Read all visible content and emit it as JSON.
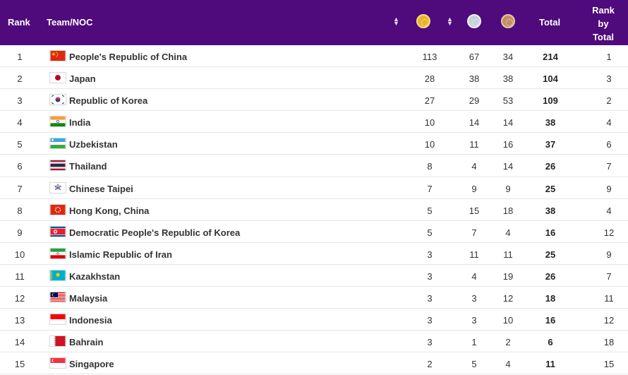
{
  "header": {
    "rank": "Rank",
    "team": "Team/NOC",
    "total": "Total",
    "rank_by_total_1": "Rank",
    "rank_by_total_2": "by",
    "rank_by_total_3": "Total",
    "sort_up": "▲",
    "sort_down": "▼"
  },
  "colors": {
    "header_bg": "#4f0a7c",
    "gold": "#e7b52a",
    "silver": "#c8d0d8",
    "bronze": "#c29062"
  },
  "rows": [
    {
      "rank": "1",
      "flag": "cn",
      "team": "People's Republic of China",
      "gold": "113",
      "silver": "67",
      "bronze": "34",
      "total": "214",
      "rank_total": "1"
    },
    {
      "rank": "2",
      "flag": "jp",
      "team": "Japan",
      "gold": "28",
      "silver": "38",
      "bronze": "38",
      "total": "104",
      "rank_total": "3"
    },
    {
      "rank": "3",
      "flag": "kr",
      "team": "Republic of Korea",
      "gold": "27",
      "silver": "29",
      "bronze": "53",
      "total": "109",
      "rank_total": "2"
    },
    {
      "rank": "4",
      "flag": "in",
      "team": "India",
      "gold": "10",
      "silver": "14",
      "bronze": "14",
      "total": "38",
      "rank_total": "4"
    },
    {
      "rank": "5",
      "flag": "uz",
      "team": "Uzbekistan",
      "gold": "10",
      "silver": "11",
      "bronze": "16",
      "total": "37",
      "rank_total": "6"
    },
    {
      "rank": "6",
      "flag": "th",
      "team": "Thailand",
      "gold": "8",
      "silver": "4",
      "bronze": "14",
      "total": "26",
      "rank_total": "7"
    },
    {
      "rank": "7",
      "flag": "tpe",
      "team": "Chinese Taipei",
      "gold": "7",
      "silver": "9",
      "bronze": "9",
      "total": "25",
      "rank_total": "9"
    },
    {
      "rank": "8",
      "flag": "hk",
      "team": "Hong Kong, China",
      "gold": "5",
      "silver": "15",
      "bronze": "18",
      "total": "38",
      "rank_total": "4"
    },
    {
      "rank": "9",
      "flag": "kp",
      "team": "Democratic People's Republic of Korea",
      "gold": "5",
      "silver": "7",
      "bronze": "4",
      "total": "16",
      "rank_total": "12"
    },
    {
      "rank": "10",
      "flag": "ir",
      "team": "Islamic Republic of Iran",
      "gold": "3",
      "silver": "11",
      "bronze": "11",
      "total": "25",
      "rank_total": "9"
    },
    {
      "rank": "11",
      "flag": "kz",
      "team": "Kazakhstan",
      "gold": "3",
      "silver": "4",
      "bronze": "19",
      "total": "26",
      "rank_total": "7"
    },
    {
      "rank": "12",
      "flag": "my",
      "team": "Malaysia",
      "gold": "3",
      "silver": "3",
      "bronze": "12",
      "total": "18",
      "rank_total": "11"
    },
    {
      "rank": "13",
      "flag": "id",
      "team": "Indonesia",
      "gold": "3",
      "silver": "3",
      "bronze": "10",
      "total": "16",
      "rank_total": "12"
    },
    {
      "rank": "14",
      "flag": "bh",
      "team": "Bahrain",
      "gold": "3",
      "silver": "1",
      "bronze": "2",
      "total": "6",
      "rank_total": "18"
    },
    {
      "rank": "15",
      "flag": "sg",
      "team": "Singapore",
      "gold": "2",
      "silver": "5",
      "bronze": "4",
      "total": "11",
      "rank_total": "15"
    }
  ]
}
